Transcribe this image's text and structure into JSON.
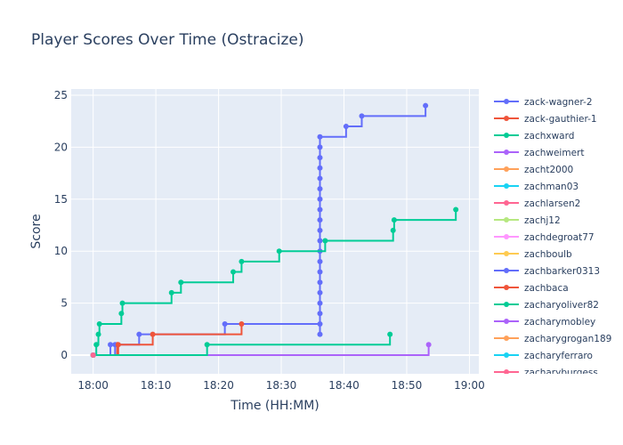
{
  "chart_data": {
    "type": "line",
    "line_shape": "step",
    "title": "Player Scores Over Time (Ostracize)",
    "xlabel": "Time (HH:MM)",
    "ylabel": "Score",
    "x_ticks": [
      "18:00",
      "18:10",
      "18:20",
      "18:30",
      "18:40",
      "18:50",
      "19:00"
    ],
    "y_ticks": [
      0,
      5,
      10,
      15,
      20,
      25
    ],
    "xlim": [
      "17:56:30",
      "19:01:30"
    ],
    "ylim": [
      -1.8,
      25.6
    ],
    "grid": true,
    "legend_position": "right",
    "series": [
      {
        "name": "zack-wagner-2",
        "color": "#636efa",
        "points": [
          {
            "x": "18:00:00",
            "y": 0
          },
          {
            "x": "18:02:45",
            "y": 1
          },
          {
            "x": "18:07:20",
            "y": 2
          },
          {
            "x": "18:21:00",
            "y": 3
          },
          {
            "x": "18:36:10",
            "y": 2
          },
          {
            "x": "18:36:10",
            "y": 3
          },
          {
            "x": "18:36:10",
            "y": 4
          },
          {
            "x": "18:36:10",
            "y": 5
          },
          {
            "x": "18:36:10",
            "y": 6
          },
          {
            "x": "18:36:10",
            "y": 7
          },
          {
            "x": "18:36:10",
            "y": 8
          },
          {
            "x": "18:36:10",
            "y": 9
          },
          {
            "x": "18:36:10",
            "y": 10
          },
          {
            "x": "18:36:10",
            "y": 11
          },
          {
            "x": "18:36:10",
            "y": 12
          },
          {
            "x": "18:36:10",
            "y": 13
          },
          {
            "x": "18:36:10",
            "y": 14
          },
          {
            "x": "18:36:10",
            "y": 15
          },
          {
            "x": "18:36:10",
            "y": 16
          },
          {
            "x": "18:36:10",
            "y": 17
          },
          {
            "x": "18:36:10",
            "y": 18
          },
          {
            "x": "18:36:10",
            "y": 19
          },
          {
            "x": "18:36:10",
            "y": 20
          },
          {
            "x": "18:36:10",
            "y": 21
          },
          {
            "x": "18:40:20",
            "y": 22
          },
          {
            "x": "18:42:50",
            "y": 23
          },
          {
            "x": "18:53:00",
            "y": 24
          }
        ]
      },
      {
        "name": "zack-gauthier-1",
        "color": "#ef553b",
        "points": [
          {
            "x": "18:00:00",
            "y": 0
          },
          {
            "x": "18:03:50",
            "y": 1
          },
          {
            "x": "18:09:30",
            "y": 2
          },
          {
            "x": "18:23:40",
            "y": 3
          }
        ]
      },
      {
        "name": "zachxward",
        "color": "#00cc96",
        "points": [
          {
            "x": "18:00:00",
            "y": 0
          },
          {
            "x": "18:00:30",
            "y": 1
          },
          {
            "x": "18:00:50",
            "y": 2
          },
          {
            "x": "18:01:00",
            "y": 3
          },
          {
            "x": "18:04:30",
            "y": 4
          },
          {
            "x": "18:04:40",
            "y": 5
          },
          {
            "x": "18:12:30",
            "y": 6
          },
          {
            "x": "18:14:00",
            "y": 7
          },
          {
            "x": "18:22:20",
            "y": 8
          },
          {
            "x": "18:23:40",
            "y": 9
          },
          {
            "x": "18:29:40",
            "y": 10
          },
          {
            "x": "18:37:00",
            "y": 11
          },
          {
            "x": "18:47:50",
            "y": 12
          },
          {
            "x": "18:48:00",
            "y": 13
          },
          {
            "x": "18:57:50",
            "y": 14
          }
        ]
      },
      {
        "name": "zachweimert",
        "color": "#ab63fa",
        "points": [
          {
            "x": "18:00:00",
            "y": 0
          },
          {
            "x": "18:53:30",
            "y": 1
          }
        ]
      },
      {
        "name": "zacht2000",
        "color": "#ffa15a",
        "points": [
          {
            "x": "18:00:00",
            "y": 0
          }
        ]
      },
      {
        "name": "zachman03",
        "color": "#19d3f3",
        "points": [
          {
            "x": "18:00:00",
            "y": 0
          }
        ]
      },
      {
        "name": "zachlarsen2",
        "color": "#ff6692",
        "points": [
          {
            "x": "18:00:00",
            "y": 0
          }
        ]
      },
      {
        "name": "zachj12",
        "color": "#b6e880",
        "points": [
          {
            "x": "18:00:00",
            "y": 0
          }
        ]
      },
      {
        "name": "zachdegroat77",
        "color": "#ff97ff",
        "points": [
          {
            "x": "18:00:00",
            "y": 0
          }
        ]
      },
      {
        "name": "zachboulb",
        "color": "#fecb52",
        "points": [
          {
            "x": "18:00:00",
            "y": 0
          }
        ]
      },
      {
        "name": "zachbarker0313",
        "color": "#636efa",
        "points": [
          {
            "x": "18:00:00",
            "y": 0
          },
          {
            "x": "18:03:30",
            "y": 1
          }
        ]
      },
      {
        "name": "zachbaca",
        "color": "#ef553b",
        "points": [
          {
            "x": "18:00:00",
            "y": 0
          },
          {
            "x": "18:04:00",
            "y": 1
          }
        ]
      },
      {
        "name": "zacharyoliver82",
        "color": "#00cc96",
        "points": [
          {
            "x": "18:00:00",
            "y": 0
          },
          {
            "x": "18:18:10",
            "y": 1
          },
          {
            "x": "18:47:20",
            "y": 2
          }
        ]
      },
      {
        "name": "zacharymobley",
        "color": "#ab63fa",
        "points": [
          {
            "x": "18:00:00",
            "y": 0
          }
        ]
      },
      {
        "name": "zacharygrogan189",
        "color": "#ffa15a",
        "points": [
          {
            "x": "18:00:00",
            "y": 0
          }
        ]
      },
      {
        "name": "zacharyferraro",
        "color": "#19d3f3",
        "points": [
          {
            "x": "18:00:00",
            "y": 0
          }
        ]
      },
      {
        "name": "zacharyburgess",
        "color": "#ff6692",
        "points": [
          {
            "x": "18:00:00",
            "y": 0
          }
        ]
      }
    ]
  }
}
